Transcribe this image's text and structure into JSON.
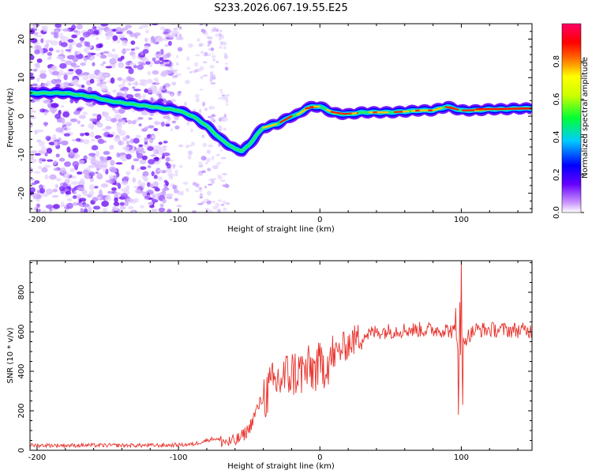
{
  "title": "S233.2026.067.19.55.E25",
  "chart_data": [
    {
      "type": "heatmap",
      "name": "spectrogram",
      "xlabel": "Height of straight line (km)",
      "ylabel": "Frequency (Hz)",
      "xlim": [
        -205,
        150
      ],
      "ylim": [
        -25,
        24
      ],
      "xticks": [
        -200,
        -100,
        0,
        100
      ],
      "xtick_labels": [
        "-200",
        "-100",
        "0",
        "100"
      ],
      "yticks": [
        -20,
        -10,
        0,
        10,
        20
      ],
      "ytick_labels": [
        "-20",
        "-10",
        "0",
        "10",
        "20"
      ],
      "colorbar": {
        "label": "Normalized spectral amplitude",
        "range": [
          0,
          1
        ],
        "ticks": [
          0.0,
          0.2,
          0.4,
          0.6,
          0.8
        ],
        "tick_labels": [
          "0.0",
          "0.2",
          "0.4",
          "0.6",
          "0.8"
        ],
        "colors": [
          "#ffffff",
          "#cc99ff",
          "#6600ff",
          "#0000ff",
          "#00ccff",
          "#00ff33",
          "#ffff00",
          "#ff6600",
          "#ff0000",
          "#ff0066"
        ]
      },
      "ridge": {
        "x": [
          -200,
          -190,
          -180,
          -170,
          -160,
          -150,
          -140,
          -130,
          -120,
          -110,
          -100,
          -90,
          -80,
          -70,
          -60,
          -55,
          -50,
          -45,
          -40,
          -35,
          -30,
          -25,
          -20,
          -15,
          -10,
          -5,
          0,
          10,
          20,
          30,
          40,
          50,
          60,
          70,
          80,
          90,
          95,
          100,
          110,
          120,
          130,
          140,
          150
        ],
        "y": [
          6,
          6,
          6,
          5.5,
          5,
          4,
          3.5,
          3,
          2.5,
          2,
          1.5,
          0,
          -2.5,
          -6,
          -8.5,
          -9,
          -7.5,
          -5,
          -3,
          -2.5,
          -2,
          -1,
          0,
          0.5,
          2,
          2.5,
          2.5,
          0.8,
          0.5,
          1,
          1,
          1,
          1.2,
          1.5,
          1.5,
          2.5,
          2,
          1.5,
          1.5,
          1.8,
          1.8,
          2,
          2
        ],
        "peak_x_range": [
          -40,
          150
        ]
      }
    },
    {
      "type": "line",
      "name": "snr",
      "xlabel": "Height of straight line (km)",
      "ylabel": "SNR (10 * v/v)",
      "xlim": [
        -205,
        150
      ],
      "ylim": [
        0,
        960
      ],
      "xticks": [
        -200,
        -100,
        0,
        100
      ],
      "xtick_labels": [
        "-200",
        "-100",
        "0",
        "100"
      ],
      "yticks": [
        0,
        200,
        400,
        600,
        800
      ],
      "ytick_labels": [
        "0",
        "200",
        "400",
        "600",
        "800"
      ],
      "color": "#e8322b",
      "trend": {
        "x": [
          -205,
          -150,
          -110,
          -90,
          -75,
          -65,
          -60,
          -55,
          -50,
          -45,
          -40,
          -35,
          -30,
          -20,
          -10,
          0,
          10,
          20,
          30,
          40,
          60,
          80,
          90,
          95,
          98,
          100,
          102,
          110,
          130,
          150
        ],
        "y": [
          25,
          25,
          25,
          30,
          60,
          40,
          45,
          70,
          110,
          200,
          270,
          310,
          350,
          390,
          400,
          420,
          480,
          540,
          580,
          600,
          610,
          610,
          610,
          600,
          520,
          500,
          560,
          610,
          610,
          605
        ]
      },
      "spikes": [
        {
          "x": 98,
          "y": 180
        },
        {
          "x": 99,
          "y": 750
        },
        {
          "x": 100,
          "y": 960
        },
        {
          "x": 101,
          "y": 230
        },
        {
          "x": 96,
          "y": 720
        }
      ]
    }
  ]
}
